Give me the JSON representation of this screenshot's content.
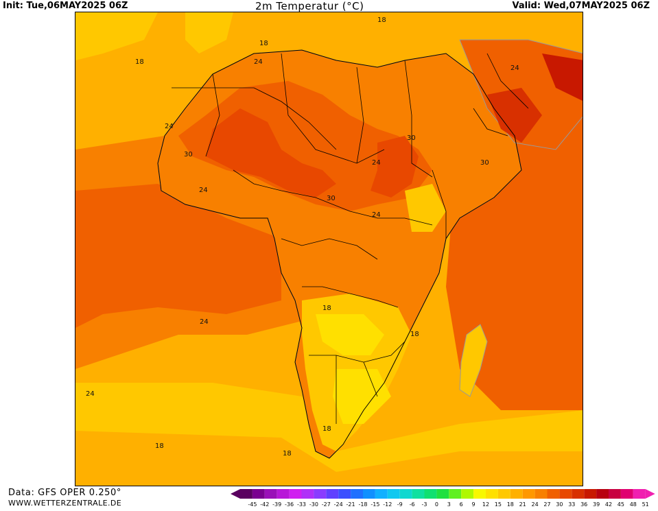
{
  "header": {
    "init": "Init: Tue,06MAY2025 06Z",
    "title": "2m Temperatur (°C)",
    "valid": "Valid: Wed,07MAY2025 06Z"
  },
  "footer": {
    "data_source": "Data: GFS OPER 0.250°",
    "website": "WWW.WETTERZENTRALE.DE"
  },
  "map": {
    "region": "Africa",
    "contour_labels": [
      "18",
      "18",
      "24",
      "18",
      "24",
      "30",
      "24",
      "30",
      "24",
      "30",
      "24",
      "30",
      "24",
      "24",
      "18",
      "18",
      "24",
      "18",
      "18",
      "18",
      "24"
    ]
  },
  "legend": {
    "ticks": [
      "-45",
      "-42",
      "-39",
      "-36",
      "-33",
      "-30",
      "-27",
      "-24",
      "-21",
      "-18",
      "-15",
      "-12",
      "-9",
      "-6",
      "-3",
      "0",
      "3",
      "6",
      "9",
      "12",
      "15",
      "18",
      "21",
      "24",
      "27",
      "30",
      "33",
      "36",
      "39",
      "42",
      "45",
      "48",
      "51"
    ],
    "colors": [
      "#5a0060",
      "#7a0090",
      "#9a10b8",
      "#b818d8",
      "#d020f0",
      "#b030f8",
      "#8a3cff",
      "#6040ff",
      "#3c50ff",
      "#2070ff",
      "#1090ff",
      "#10b0ff",
      "#10c8f0",
      "#10d8d0",
      "#10e0a0",
      "#10e070",
      "#20e040",
      "#60f020",
      "#b0f800",
      "#f8f800",
      "#ffe000",
      "#ffc800",
      "#ffb000",
      "#ff9800",
      "#f88000",
      "#f06000",
      "#e84800",
      "#d83000",
      "#c81800",
      "#b80010",
      "#c80040",
      "#e00070",
      "#f020b0"
    ],
    "colors_note": "temperature color scale"
  }
}
